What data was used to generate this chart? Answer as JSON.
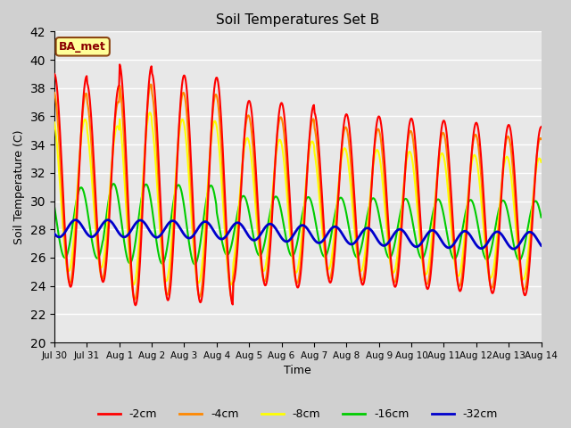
{
  "title": "Soil Temperatures Set B",
  "xlabel": "Time",
  "ylabel": "Soil Temperature (C)",
  "ylim": [
    20,
    42
  ],
  "fig_bg_color": "#d0d0d0",
  "plot_bg_color": "#e8e8e8",
  "annotation_text": "BA_met",
  "annotation_bg": "#ffff99",
  "annotation_border": "#8B4513",
  "line_colors": {
    "-2cm": "#ff0000",
    "-4cm": "#ff8800",
    "-8cm": "#ffff00",
    "-16cm": "#00cc00",
    "-32cm": "#0000cc"
  },
  "line_widths": {
    "-2cm": 1.5,
    "-4cm": 1.5,
    "-8cm": 1.5,
    "-16cm": 1.5,
    "-32cm": 2.0
  },
  "xtick_labels": [
    "Jul 30",
    "Jul 31",
    "Aug 1",
    "Aug 2",
    "Aug 3",
    "Aug 4",
    "Aug 5",
    "Aug 6",
    "Aug 7",
    "Aug 8",
    "Aug 9",
    "Aug 10",
    "Aug 11",
    "Aug 12",
    "Aug 13",
    "Aug 14"
  ],
  "n_days": 16,
  "pts_per_day": 48
}
